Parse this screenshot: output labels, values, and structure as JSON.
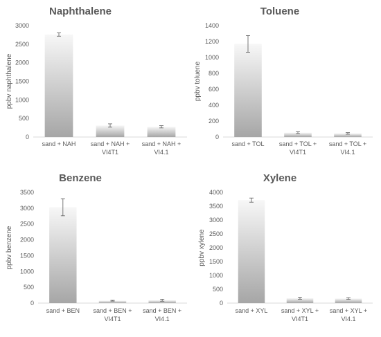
{
  "chart_data": [
    {
      "type": "bar",
      "title": "Naphthalene",
      "ylabel": "ppbv naphthalene",
      "xlabel": "",
      "ylim": [
        0,
        3000
      ],
      "ystep": 500,
      "yticks": [
        "0",
        "500",
        "1000",
        "1500",
        "2000",
        "2500",
        "3000"
      ],
      "categories": [
        [
          "sand + NAH"
        ],
        [
          "sand + NAH +",
          "VI4T1"
        ],
        [
          "sand + NAH +",
          "VI4.1"
        ]
      ],
      "values": [
        2760,
        310,
        275
      ],
      "errors": [
        45,
        45,
        30
      ],
      "grid": false,
      "legend": "none"
    },
    {
      "type": "bar",
      "title": "Toluene",
      "ylabel": "ppbv toluene",
      "xlabel": "",
      "ylim": [
        0,
        1400
      ],
      "ystep": 200,
      "yticks": [
        "0",
        "200",
        "400",
        "600",
        "800",
        "1000",
        "1200",
        "1400"
      ],
      "categories": [
        [
          "sand + TOL"
        ],
        [
          "sand + TOL +",
          "VI4T1"
        ],
        [
          "sand + TOL +",
          "VI4.1"
        ]
      ],
      "values": [
        1170,
        55,
        45
      ],
      "errors": [
        105,
        12,
        10
      ],
      "grid": false,
      "legend": "none"
    },
    {
      "type": "bar",
      "title": "Benzene",
      "ylabel": "ppbv benzene",
      "xlabel": "",
      "ylim": [
        0,
        3500
      ],
      "ystep": 500,
      "yticks": [
        "0",
        "500",
        "1000",
        "1500",
        "2000",
        "2500",
        "3000",
        "3500"
      ],
      "categories": [
        [
          "sand + BEN"
        ],
        [
          "sand + BEN +",
          "VI4T1"
        ],
        [
          "sand + BEN +",
          "VI4.1"
        ]
      ],
      "values": [
        3030,
        75,
        90
      ],
      "errors": [
        270,
        12,
        30
      ],
      "grid": false,
      "legend": "none"
    },
    {
      "type": "bar",
      "title": "Xylene",
      "ylabel": "ppbv xylene",
      "xlabel": "",
      "ylim": [
        0,
        4000
      ],
      "ystep": 500,
      "yticks": [
        "0",
        "500",
        "1000",
        "1500",
        "2000",
        "2500",
        "3000",
        "3500",
        "4000"
      ],
      "categories": [
        [
          "sand + XYL"
        ],
        [
          "sand + XYL +",
          "VI4T1"
        ],
        [
          "sand + XYL +",
          "VI4.1"
        ]
      ],
      "values": [
        3720,
        175,
        165
      ],
      "errors": [
        75,
        35,
        30
      ],
      "grid": false,
      "legend": "none"
    }
  ],
  "style": {
    "bar_dark": "#a6a6a6",
    "bar_light": "#f7f7f7",
    "axis_color": "#d9d9d9",
    "text_color": "#595959",
    "error_color": "#595959"
  }
}
